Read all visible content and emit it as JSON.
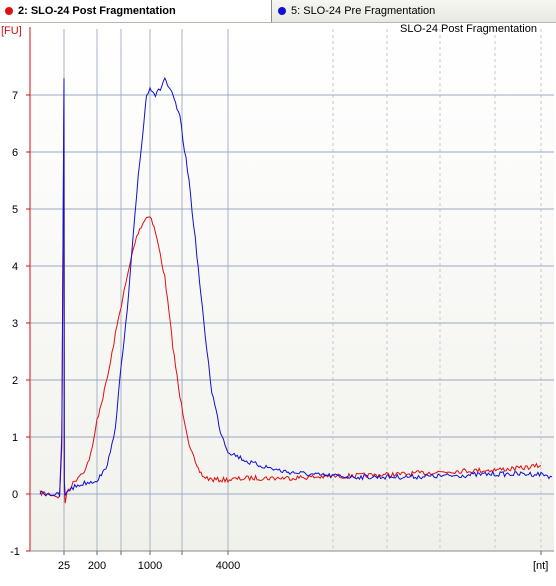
{
  "tabs": [
    {
      "label": "2: SLO-24 Post Fragmentation",
      "color": "#e01010",
      "active": true
    },
    {
      "label": "5: SLO-24 Pre Fragmentation",
      "color": "#1010d0",
      "active": false
    }
  ],
  "chart_data": {
    "type": "line",
    "title": "SLO-24 Post Fragmentation",
    "ylabel": "[FU]",
    "xlabel": "[nt]",
    "ylim": [
      -1,
      8
    ],
    "yticks": [
      -1,
      0,
      1,
      2,
      3,
      4,
      5,
      6,
      7
    ],
    "xtick_labels": [
      "25",
      "200",
      "1000",
      "4000"
    ],
    "grid": true,
    "series": [
      {
        "name": "2: SLO-24 Post Fragmentation",
        "color": "#e01010",
        "x": [
          20,
          22,
          24,
          24.5,
          25,
          25.5,
          27,
          30,
          40,
          60,
          100,
          150,
          200,
          250,
          300,
          350,
          400,
          500,
          600,
          700,
          800,
          900,
          1000,
          1100,
          1200,
          1300,
          1400,
          1500,
          1700,
          2000,
          2300,
          2600,
          3000,
          3500,
          4000,
          5000,
          7000,
          10000,
          15000,
          25000,
          40000,
          60000,
          80000,
          100000
        ],
        "y": [
          0.02,
          0.0,
          -0.05,
          0.8,
          7.2,
          0.1,
          -0.2,
          0.05,
          0.15,
          0.3,
          0.45,
          0.8,
          1.3,
          1.8,
          2.3,
          2.8,
          3.2,
          3.8,
          4.3,
          4.6,
          4.75,
          4.85,
          4.9,
          4.6,
          4.2,
          3.8,
          3.2,
          2.6,
          1.7,
          0.9,
          0.45,
          0.3,
          0.25,
          0.25,
          0.25,
          0.28,
          0.28,
          0.3,
          0.32,
          0.35,
          0.4,
          0.42,
          0.45,
          0.5
        ]
      },
      {
        "name": "5: SLO-24 Pre Fragmentation",
        "color": "#1010d0",
        "x": [
          20,
          22,
          24,
          24.5,
          25,
          25.5,
          27,
          30,
          40,
          60,
          100,
          150,
          200,
          250,
          300,
          350,
          400,
          500,
          600,
          700,
          800,
          900,
          1000,
          1100,
          1200,
          1300,
          1400,
          1500,
          1700,
          2000,
          2300,
          2600,
          3000,
          3500,
          4000,
          5000,
          7000,
          10000,
          15000,
          25000,
          40000,
          60000,
          80000,
          100000,
          120000
        ],
        "y": [
          0.02,
          0.0,
          -0.02,
          1.0,
          7.3,
          0.2,
          -0.05,
          0.05,
          0.1,
          0.15,
          0.2,
          0.22,
          0.25,
          0.4,
          0.7,
          1.2,
          2.0,
          3.2,
          4.5,
          5.6,
          6.3,
          7.0,
          7.15,
          7.0,
          7.1,
          7.3,
          7.1,
          7.0,
          6.6,
          5.5,
          4.2,
          3.0,
          1.8,
          1.1,
          0.75,
          0.55,
          0.4,
          0.33,
          0.3,
          0.3,
          0.32,
          0.35,
          0.35,
          0.35,
          0.3
        ]
      }
    ]
  }
}
